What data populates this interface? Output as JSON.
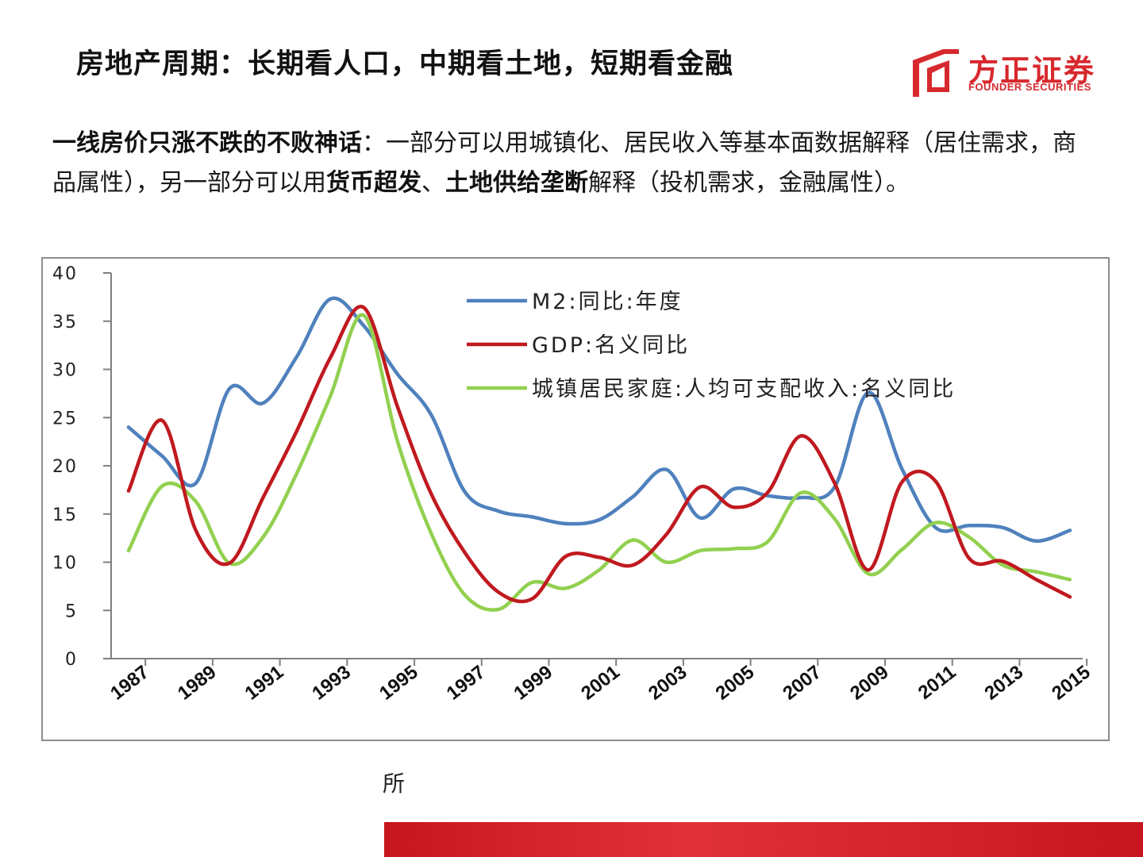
{
  "slide": {
    "title": "房地产周期：长期看人口，中期看土地，短期看金融",
    "logo": {
      "cn": "方正证券",
      "en": "FOUNDER SECURITIES"
    },
    "intro": {
      "bold1": "一线房价只涨不跌的不败神话",
      "text1": "：一部分可以用城镇化、居民收入等基本面数据解释（居住需求，商品属性），另一部分可以用",
      "bold2": "货币超发",
      "text2": "、",
      "bold3": "土地供给垄断",
      "text3": "解释（投机需求，金融属性）。"
    },
    "source_fragment": "所",
    "colors": {
      "accent": "#d7282e",
      "footer": "#d0242b"
    }
  },
  "chart_data": {
    "type": "line",
    "x": [
      1987,
      1988,
      1989,
      1990,
      1991,
      1992,
      1993,
      1994,
      1995,
      1996,
      1997,
      1998,
      1999,
      2000,
      2001,
      2002,
      2003,
      2004,
      2005,
      2006,
      2007,
      2008,
      2009,
      2010,
      2011,
      2012,
      2013,
      2014,
      2015
    ],
    "x_ticks": [
      "1987",
      "1989",
      "1991",
      "1993",
      "1995",
      "1997",
      "1999",
      "2001",
      "2003",
      "2005",
      "2007",
      "2009",
      "2011",
      "2013",
      "2015"
    ],
    "ylim": [
      0,
      40
    ],
    "y_ticks": [
      "0",
      "5",
      "10",
      "15",
      "20",
      "25",
      "30",
      "35",
      "40"
    ],
    "legend_position": "top-right",
    "grid": false,
    "series": [
      {
        "name": "M2:同比:年度",
        "color": "#4f81bd",
        "values": [
          24.0,
          21.0,
          18.2,
          28.0,
          26.5,
          31.3,
          37.3,
          34.5,
          29.5,
          25.3,
          17.3,
          15.3,
          14.7,
          14.0,
          14.4,
          16.8,
          19.6,
          14.6,
          17.6,
          16.9,
          16.7,
          17.8,
          27.6,
          19.7,
          13.6,
          13.8,
          13.6,
          12.2,
          13.3
        ]
      },
      {
        "name": "GDP:名义同比",
        "color": "#c0191f",
        "values": [
          17.4,
          24.7,
          13.3,
          9.9,
          16.7,
          23.6,
          31.2,
          36.4,
          26.1,
          17.1,
          11.0,
          6.9,
          6.2,
          10.6,
          10.5,
          9.7,
          12.9,
          17.8,
          15.7,
          17.2,
          23.1,
          18.2,
          9.2,
          18.3,
          18.4,
          10.4,
          10.1,
          8.2,
          6.4
        ]
      },
      {
        "name": "城镇居民家庭:人均可支配收入:名义同比",
        "color": "#92d050",
        "values": [
          11.2,
          17.9,
          16.3,
          9.9,
          12.6,
          19.2,
          27.2,
          35.6,
          22.5,
          13.0,
          6.6,
          5.1,
          7.9,
          7.3,
          9.2,
          12.3,
          10.0,
          11.2,
          11.4,
          12.1,
          17.2,
          14.5,
          8.8,
          11.3,
          14.1,
          12.6,
          9.7,
          9.0,
          8.2
        ]
      }
    ]
  }
}
